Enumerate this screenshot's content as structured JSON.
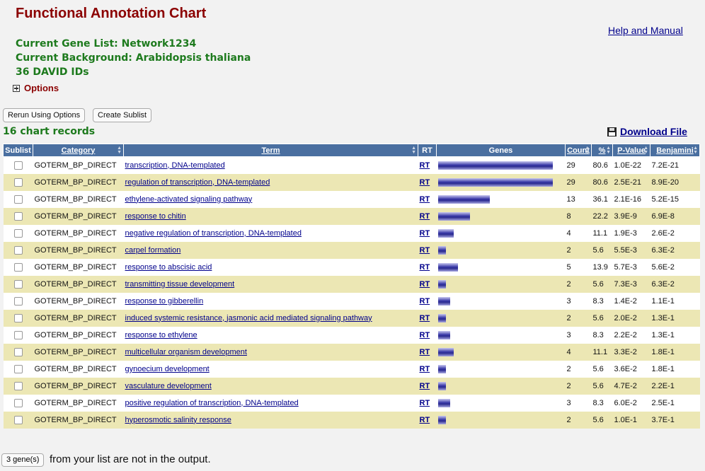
{
  "header": {
    "title": "Functional Annotation Chart",
    "help_link": "Help and Manual",
    "gene_list": "Current Gene List: Network1234",
    "background": "Current Background: Arabidopsis thaliana",
    "david_ids": "36 DAVID IDs",
    "options_label": "Options"
  },
  "buttons": {
    "rerun": "Rerun Using Options",
    "create_sublist": "Create Sublist"
  },
  "records_label": "16 chart records",
  "download_label": "Download File",
  "table": {
    "columns": [
      "Sublist",
      "Category",
      "Term",
      "RT",
      "Genes",
      "Count",
      "%",
      "P-Value",
      "Benjamini"
    ],
    "rows": [
      {
        "category": "GOTERM_BP_DIRECT",
        "term": "transcription, DNA-templated",
        "rt": "RT",
        "count": "29",
        "percent": "80.6",
        "pvalue": "1.0E-22",
        "benjamini": "7.2E-21"
      },
      {
        "category": "GOTERM_BP_DIRECT",
        "term": "regulation of transcription, DNA-templated",
        "rt": "RT",
        "count": "29",
        "percent": "80.6",
        "pvalue": "2.5E-21",
        "benjamini": "8.9E-20"
      },
      {
        "category": "GOTERM_BP_DIRECT",
        "term": "ethylene-activated signaling pathway",
        "rt": "RT",
        "count": "13",
        "percent": "36.1",
        "pvalue": "2.1E-16",
        "benjamini": "5.2E-15"
      },
      {
        "category": "GOTERM_BP_DIRECT",
        "term": "response to chitin",
        "rt": "RT",
        "count": "8",
        "percent": "22.2",
        "pvalue": "3.9E-9",
        "benjamini": "6.9E-8"
      },
      {
        "category": "GOTERM_BP_DIRECT",
        "term": "negative regulation of transcription, DNA-templated",
        "rt": "RT",
        "count": "4",
        "percent": "11.1",
        "pvalue": "1.9E-3",
        "benjamini": "2.6E-2"
      },
      {
        "category": "GOTERM_BP_DIRECT",
        "term": "carpel formation",
        "rt": "RT",
        "count": "2",
        "percent": "5.6",
        "pvalue": "5.5E-3",
        "benjamini": "6.3E-2"
      },
      {
        "category": "GOTERM_BP_DIRECT",
        "term": "response to abscisic acid",
        "rt": "RT",
        "count": "5",
        "percent": "13.9",
        "pvalue": "5.7E-3",
        "benjamini": "5.6E-2"
      },
      {
        "category": "GOTERM_BP_DIRECT",
        "term": "transmitting tissue development",
        "rt": "RT",
        "count": "2",
        "percent": "5.6",
        "pvalue": "7.3E-3",
        "benjamini": "6.3E-2"
      },
      {
        "category": "GOTERM_BP_DIRECT",
        "term": "response to gibberellin",
        "rt": "RT",
        "count": "3",
        "percent": "8.3",
        "pvalue": "1.4E-2",
        "benjamini": "1.1E-1"
      },
      {
        "category": "GOTERM_BP_DIRECT",
        "term": "induced systemic resistance, jasmonic acid mediated signaling pathway",
        "rt": "RT",
        "count": "2",
        "percent": "5.6",
        "pvalue": "2.0E-2",
        "benjamini": "1.3E-1"
      },
      {
        "category": "GOTERM_BP_DIRECT",
        "term": "response to ethylene",
        "rt": "RT",
        "count": "3",
        "percent": "8.3",
        "pvalue": "2.2E-2",
        "benjamini": "1.3E-1"
      },
      {
        "category": "GOTERM_BP_DIRECT",
        "term": "multicellular organism development",
        "rt": "RT",
        "count": "4",
        "percent": "11.1",
        "pvalue": "3.3E-2",
        "benjamini": "1.8E-1"
      },
      {
        "category": "GOTERM_BP_DIRECT",
        "term": "gynoecium development",
        "rt": "RT",
        "count": "2",
        "percent": "5.6",
        "pvalue": "3.6E-2",
        "benjamini": "1.8E-1"
      },
      {
        "category": "GOTERM_BP_DIRECT",
        "term": "vasculature development",
        "rt": "RT",
        "count": "2",
        "percent": "5.6",
        "pvalue": "4.7E-2",
        "benjamini": "2.2E-1"
      },
      {
        "category": "GOTERM_BP_DIRECT",
        "term": "positive regulation of transcription, DNA-templated",
        "rt": "RT",
        "count": "3",
        "percent": "8.3",
        "pvalue": "6.0E-2",
        "benjamini": "2.5E-1"
      },
      {
        "category": "GOTERM_BP_DIRECT",
        "term": "hyperosmotic salinity response",
        "rt": "RT",
        "count": "2",
        "percent": "5.6",
        "pvalue": "1.0E-1",
        "benjamini": "3.7E-1"
      }
    ]
  },
  "footer": {
    "genes_button": "3 gene(s)",
    "genes_text": "from your list are not in the output."
  }
}
